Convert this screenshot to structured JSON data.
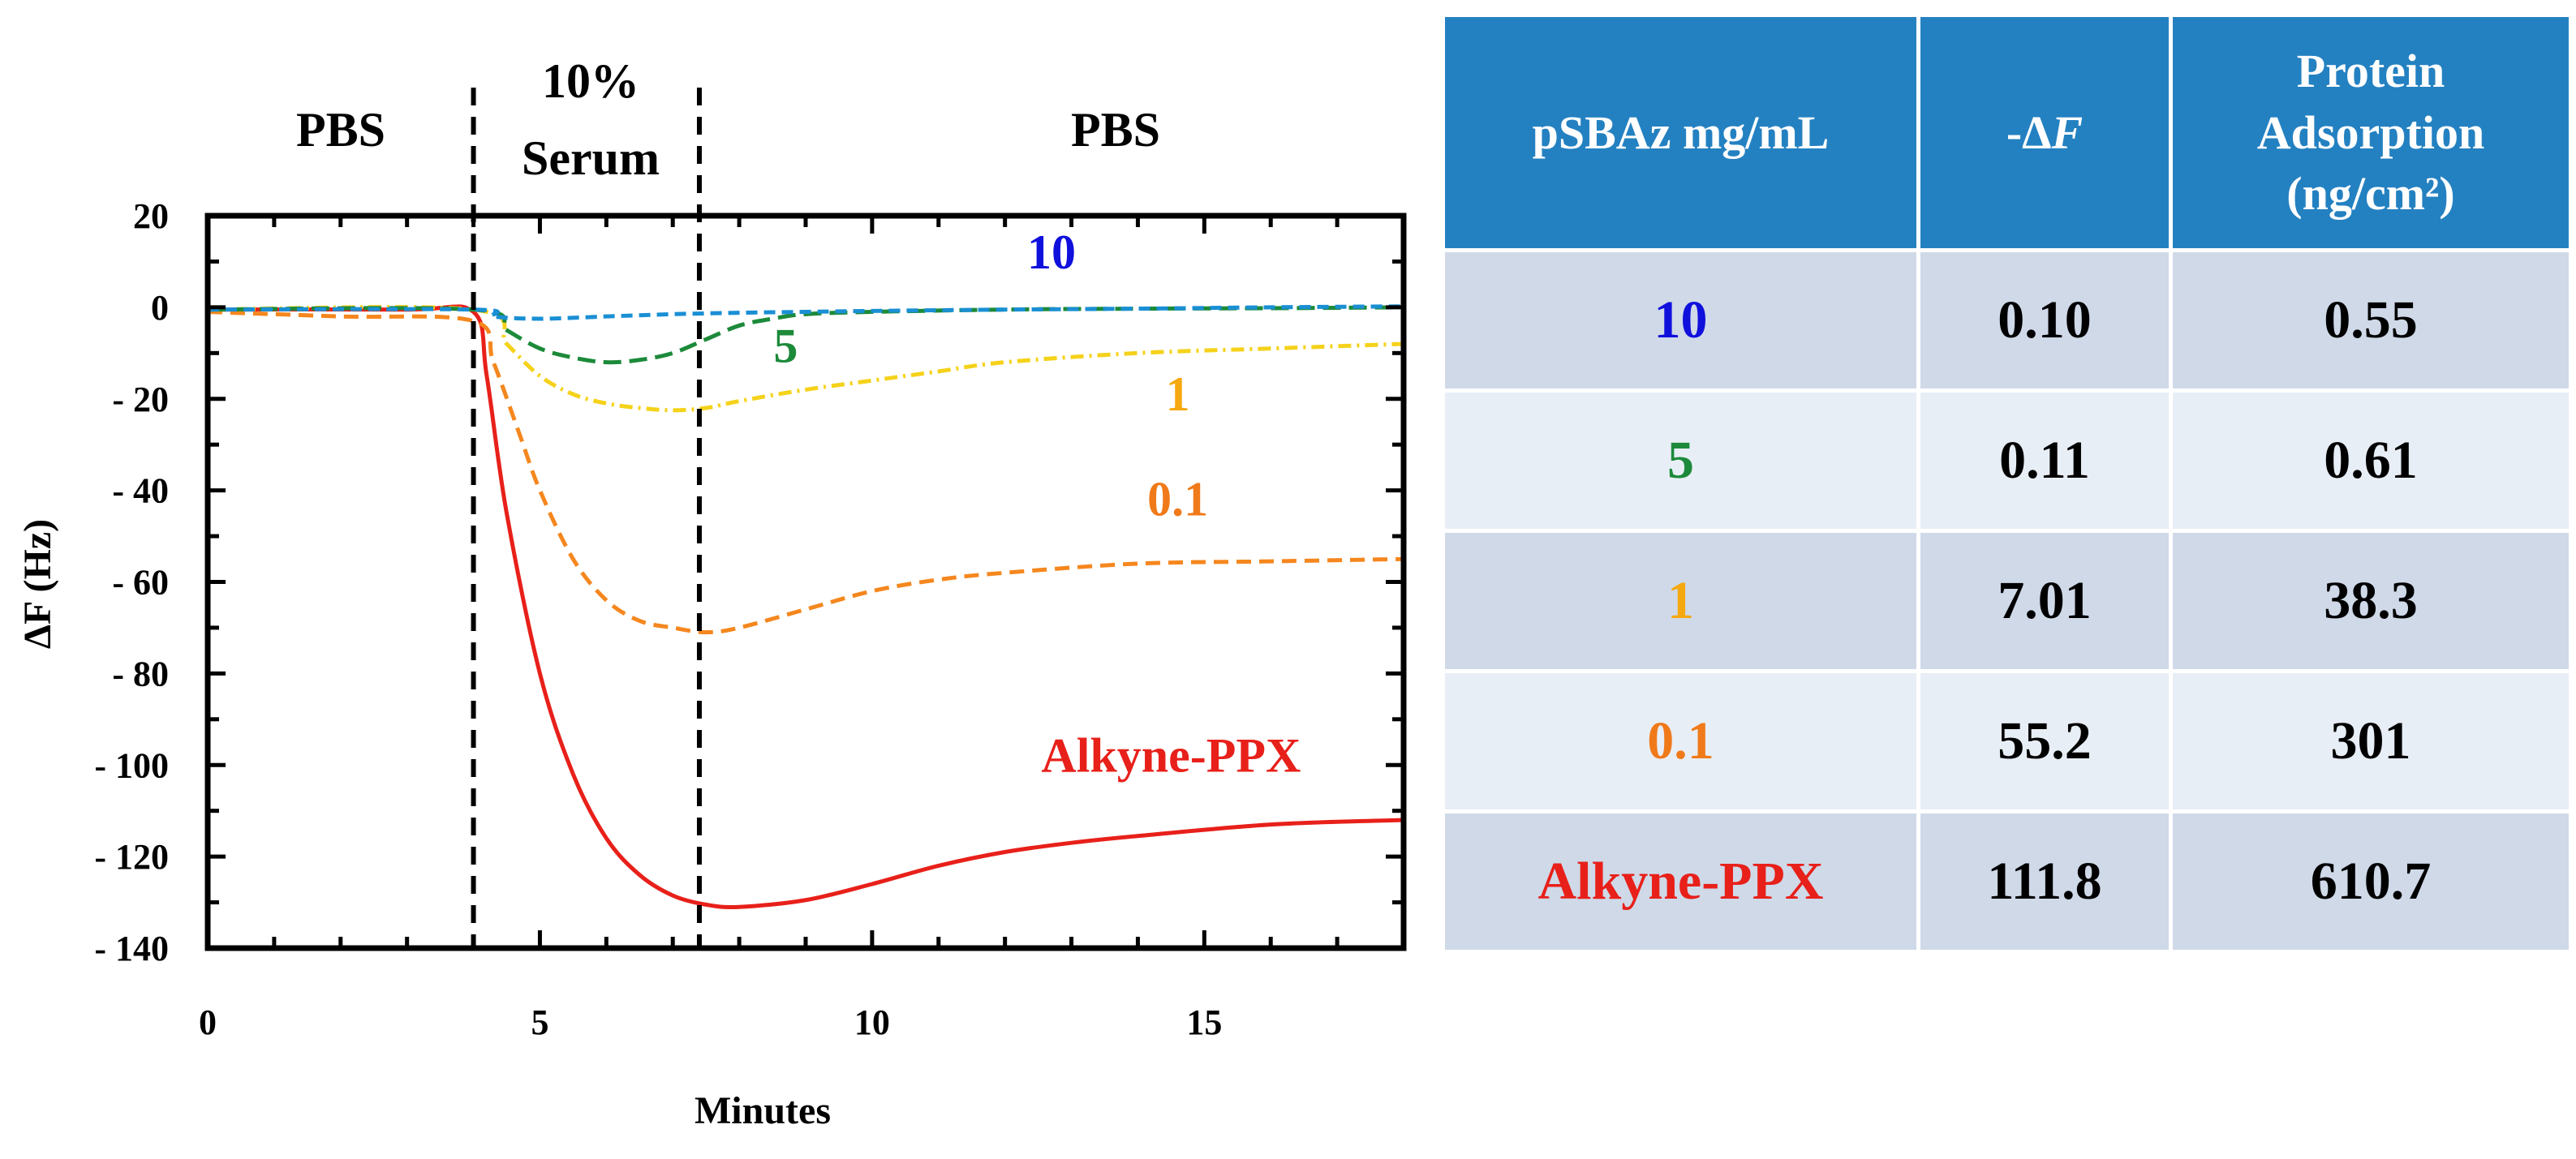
{
  "chart_data": {
    "type": "line",
    "title": "",
    "xlabel": "Minutes",
    "ylabel": "ΔF (Hz)",
    "xlim": [
      0,
      18
    ],
    "ylim": [
      -140,
      20
    ],
    "x_ticks": [
      "0",
      "5",
      "10",
      "15"
    ],
    "x_tick_values": [
      0,
      5,
      10,
      15
    ],
    "y_ticks": [
      "20",
      "0",
      "- 20",
      "- 40",
      "- 60",
      "- 80",
      "- 100",
      "- 120",
      "- 140"
    ],
    "y_tick_values": [
      20,
      0,
      -20,
      -40,
      -60,
      -80,
      -100,
      -120,
      -140
    ],
    "grid": false,
    "phases": [
      {
        "label": "PBS",
        "x_start": 0,
        "x_end": 4
      },
      {
        "label_line1": "10%",
        "label_line2": "Serum",
        "x_start": 4,
        "x_end": 7.4
      },
      {
        "label": "PBS",
        "x_start": 7.4,
        "x_end": 18
      }
    ],
    "divider_x": [
      4,
      7.4
    ],
    "series": [
      {
        "name": "10",
        "label": "10",
        "color": "#1a8fd4",
        "label_color": "#1010dd",
        "dash": "14,8",
        "x": [
          0,
          4,
          4.3,
          5,
          6,
          7,
          8,
          9,
          10,
          12,
          14,
          16,
          18
        ],
        "y": [
          -0.5,
          -0.5,
          -2,
          -2.5,
          -2,
          -1.5,
          -1.2,
          -1,
          -0.8,
          -0.5,
          -0.3,
          0,
          0.2
        ]
      },
      {
        "name": "5",
        "label": "5",
        "color": "#1c8a3a",
        "label_color": "#1c8a3a",
        "dash": "22,10",
        "x": [
          0,
          4,
          4.5,
          5,
          5.5,
          6,
          6.5,
          7,
          7.5,
          8,
          8.5,
          9,
          10,
          12,
          14,
          16,
          18
        ],
        "y": [
          -0.5,
          -0.5,
          -5,
          -9,
          -11,
          -12,
          -11.5,
          -10,
          -7,
          -4,
          -2.5,
          -1.5,
          -1,
          -0.5,
          -0.3,
          -0.2,
          0
        ]
      },
      {
        "name": "1",
        "label": "1",
        "color": "#f5d21a",
        "label_color": "#f5a80f",
        "dash": "16,7,3,7",
        "x": [
          0,
          4,
          4.5,
          5,
          5.5,
          6,
          6.5,
          7,
          7.5,
          8,
          9,
          10,
          11,
          12,
          14,
          16,
          18
        ],
        "y": [
          -0.5,
          -0.5,
          -8,
          -15,
          -19,
          -21,
          -22,
          -22.5,
          -22,
          -20.5,
          -18,
          -16,
          -14,
          -12,
          -10,
          -9,
          -8
        ]
      },
      {
        "name": "0.1",
        "label": "0.1",
        "color": "#f5871e",
        "label_color": "#f07a1a",
        "dash": "18,10",
        "x": [
          0,
          2,
          4,
          4.3,
          4.7,
          5,
          5.5,
          6,
          6.5,
          7,
          7.5,
          8,
          9,
          10,
          11,
          12,
          14,
          16,
          18
        ],
        "y": [
          -1,
          -2,
          -3,
          -12,
          -28,
          -40,
          -55,
          -64,
          -68.5,
          -70,
          -71,
          -70,
          -66,
          -62,
          -59.5,
          -58,
          -56,
          -55.5,
          -55
        ]
      },
      {
        "name": "Alkyne-PPX",
        "label": "Alkyne-PPX",
        "color": "#e8201a",
        "label_color": "#e8201a",
        "dash": "",
        "x": [
          0,
          3,
          4,
          4.2,
          4.5,
          5,
          5.5,
          6,
          6.5,
          7,
          7.5,
          8,
          9,
          10,
          11,
          12,
          13,
          14,
          16,
          18
        ],
        "y": [
          -0.5,
          -0.5,
          -1,
          -15,
          -45,
          -80,
          -102,
          -116,
          -124,
          -128.5,
          -130.5,
          -131,
          -129.5,
          -126,
          -122,
          -119,
          -117,
          -115.5,
          -113,
          -112
        ]
      }
    ]
  },
  "table": {
    "header": {
      "col1": "pSBAz mg/mL",
      "col2": "-ΔF",
      "col3_line1": "Protein",
      "col3_line2": "Adsorption",
      "col3_line3": "(ng/cm²)"
    },
    "rows": [
      {
        "label": "10",
        "delta_f": "0.10",
        "adsorption": "0.55",
        "label_color": "#1010dd"
      },
      {
        "label": "5",
        "delta_f": "0.11",
        "adsorption": "0.61",
        "label_color": "#1c8a3a"
      },
      {
        "label": "1",
        "delta_f": "7.01",
        "adsorption": "38.3",
        "label_color": "#f5a80f"
      },
      {
        "label": "0.1",
        "delta_f": "55.2",
        "adsorption": "301",
        "label_color": "#f07a1a"
      },
      {
        "label": "Alkyne-PPX",
        "delta_f": "111.8",
        "adsorption": "610.7",
        "label_color": "#e8201a"
      }
    ]
  }
}
